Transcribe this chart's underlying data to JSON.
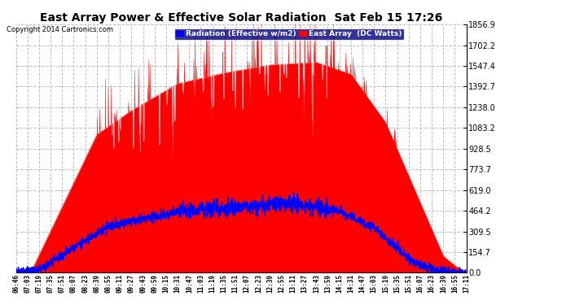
{
  "title": "East Array Power & Effective Solar Radiation  Sat Feb 15 17:26",
  "copyright": "Copyright 2014 Cartronics.com",
  "legend_radiation": "Radiation (Effective w/m2)",
  "legend_east": "East Array  (DC Watts)",
  "yticks": [
    0.0,
    154.7,
    309.5,
    464.2,
    619.0,
    773.7,
    928.5,
    1083.2,
    1238.0,
    1392.7,
    1547.4,
    1702.2,
    1856.9
  ],
  "ymax": 1856.9,
  "ymin": 0.0,
  "background_color": "#ffffff",
  "plot_bg_color": "#ffffff",
  "grid_color": "#c0c0c0",
  "radiation_color": "#0000ff",
  "east_color": "#ff0000",
  "east_fill_color": "#ff0000",
  "xtick_labels": [
    "06:46",
    "07:03",
    "07:19",
    "07:35",
    "07:51",
    "08:07",
    "08:23",
    "08:39",
    "08:55",
    "09:11",
    "09:27",
    "09:43",
    "09:59",
    "10:15",
    "10:31",
    "10:47",
    "11:03",
    "11:19",
    "11:35",
    "11:51",
    "12:07",
    "12:23",
    "12:39",
    "12:55",
    "13:11",
    "13:27",
    "13:43",
    "13:59",
    "14:15",
    "14:31",
    "14:47",
    "15:03",
    "15:19",
    "15:35",
    "15:51",
    "16:07",
    "16:23",
    "16:39",
    "16:55",
    "17:11"
  ]
}
